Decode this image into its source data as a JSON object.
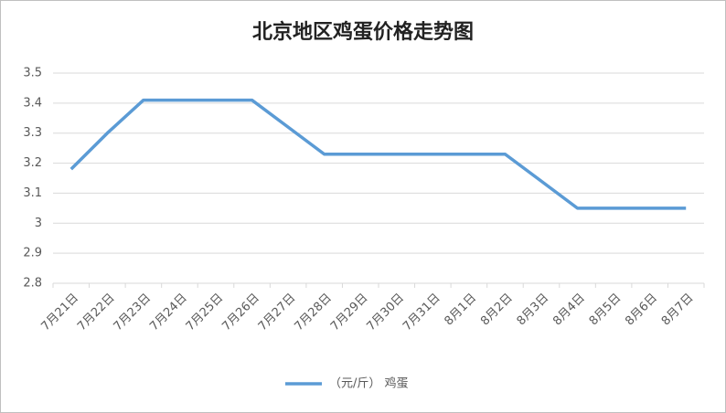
{
  "chart_data": {
    "type": "line",
    "title": "北京地区鸡蛋价格走势图",
    "categories": [
      "7月21日",
      "7月22日",
      "7月23日",
      "7月24日",
      "7月25日",
      "7月26日",
      "7月27日",
      "7月28日",
      "7月29日",
      "7月30日",
      "7月31日",
      "8月1日",
      "8月2日",
      "8月3日",
      "8月4日",
      "8月5日",
      "8月6日",
      "8月7日"
    ],
    "series": [
      {
        "name": "（元/斤） 鸡蛋",
        "color": "#5b9bd5",
        "values": [
          3.18,
          3.3,
          3.41,
          3.41,
          3.41,
          3.41,
          3.32,
          3.23,
          3.23,
          3.23,
          3.23,
          3.23,
          3.23,
          3.14,
          3.05,
          3.05,
          3.05,
          3.05
        ]
      }
    ],
    "ylim": [
      2.8,
      3.5
    ],
    "yticks": [
      2.8,
      2.9,
      3,
      3.1,
      3.2,
      3.3,
      3.4,
      3.5
    ],
    "grid": true,
    "legend": "bottom"
  }
}
